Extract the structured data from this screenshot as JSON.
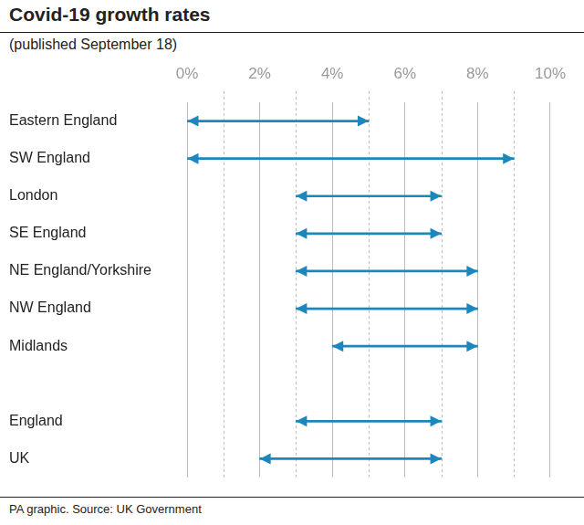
{
  "chart_data": {
    "type": "bar",
    "title": "Covid-19 growth rates",
    "subtitle": "(published September 18)",
    "annotation": "PA graphic. Source: UK Government",
    "orientation": "horizontal",
    "categories": [
      "Eastern England",
      "SW England",
      "London",
      "SE England",
      "NE England/Yorkshire",
      "NW England",
      "Midlands",
      null,
      "England",
      "UK"
    ],
    "values": [
      [
        0,
        5
      ],
      [
        0,
        9
      ],
      [
        3,
        7
      ],
      [
        3,
        7
      ],
      [
        3,
        8
      ],
      [
        3,
        8
      ],
      [
        4,
        8
      ],
      null,
      [
        3,
        7
      ],
      [
        2,
        7
      ]
    ],
    "color": "#1b87bd",
    "marker": "arrow",
    "xlim": [
      0,
      10
    ],
    "xticks": [
      {
        "value": 0,
        "label": "0%"
      },
      {
        "value": 2,
        "label": "2%"
      },
      {
        "value": 4,
        "label": "4%"
      },
      {
        "value": 6,
        "label": "6%"
      },
      {
        "value": 8,
        "label": "8%"
      },
      {
        "value": 10,
        "label": "10%"
      }
    ],
    "grid": true
  }
}
